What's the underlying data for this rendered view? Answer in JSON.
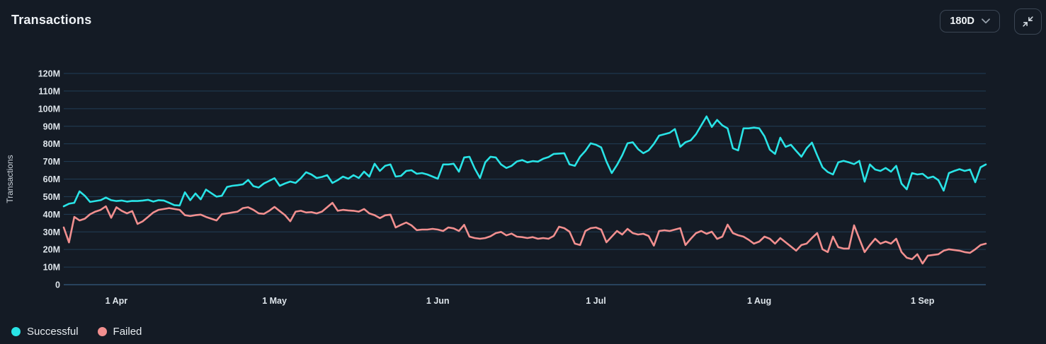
{
  "header": {
    "title": "Transactions",
    "range_selector": {
      "value": "180D",
      "chevron_icon": "chevron-down-icon"
    },
    "collapse_button": {
      "icon": "collapse-arrows-icon"
    }
  },
  "colors": {
    "background": "#141B25",
    "gridline": "#213E56",
    "axis_zero_line": "#2E5170",
    "tick_text": "#DDE4EA",
    "axis_label_text": "#C9D1D9",
    "successful": "#29E3E6",
    "failed": "#F18F8F"
  },
  "chart_data": {
    "type": "line",
    "title": "Transactions",
    "xlabel": "",
    "ylabel": "Transactions",
    "unit": "M",
    "ylim": [
      0,
      120
    ],
    "grid": "horizontal",
    "legend_position": "bottom-left",
    "y_ticks": {
      "values": [
        0,
        10,
        20,
        30,
        40,
        50,
        60,
        70,
        80,
        90,
        100,
        110,
        120
      ],
      "labels": [
        "0",
        "10M",
        "20M",
        "30M",
        "40M",
        "50M",
        "60M",
        "70M",
        "80M",
        "90M",
        "100M",
        "110M",
        "120M"
      ]
    },
    "x_ticks": [
      {
        "index": 10,
        "label": "1 Apr"
      },
      {
        "index": 40,
        "label": "1 May"
      },
      {
        "index": 71,
        "label": "1 Jun"
      },
      {
        "index": 101,
        "label": "1 Jul"
      },
      {
        "index": 132,
        "label": "1 Aug"
      },
      {
        "index": 163,
        "label": "1 Sep"
      }
    ],
    "x_points": 176,
    "series": [
      {
        "name": "Successful",
        "color": "#29E3E6",
        "values_unit": "millions",
        "values": [
          44.5,
          46,
          46.5,
          53,
          50.5,
          47,
          47.5,
          48,
          49.5,
          48,
          47.5,
          47.8,
          47.2,
          47.6,
          47.5,
          47.8,
          48.2,
          47.2,
          48,
          47.8,
          46.5,
          45.2,
          45,
          52.5,
          48,
          51.8,
          48.5,
          54,
          52,
          50,
          50.5,
          55.5,
          56.2,
          56.5,
          57,
          59.5,
          56,
          55.2,
          57.5,
          59,
          60.5,
          56.2,
          57.5,
          58.6,
          57.8,
          60.5,
          63.9,
          62.6,
          60.6,
          61.2,
          62.2,
          57.8,
          59.4,
          61.4,
          60.2,
          62.2,
          60.6,
          64.2,
          61.4,
          68.7,
          64.6,
          67.5,
          68.3,
          61.4,
          61.8,
          64.6,
          65,
          63,
          63.4,
          62.6,
          61.4,
          60.2,
          68.3,
          68.3,
          68.7,
          64.2,
          72.3,
          72.7,
          66,
          60.6,
          69.5,
          72.7,
          72.3,
          68.3,
          66.3,
          67.5,
          70,
          70.8,
          69.5,
          70.2,
          69.9,
          71.5,
          72.5,
          74.3,
          74.5,
          74.7,
          68.3,
          67.5,
          72.7,
          76,
          80.3,
          79.5,
          78,
          70,
          63.4,
          68,
          73.5,
          80.3,
          80.9,
          77,
          74.7,
          76.3,
          80,
          84.7,
          85.5,
          86.3,
          88.4,
          78.3,
          80.9,
          82,
          85.5,
          90.5,
          95.6,
          89.6,
          93.6,
          90.5,
          88.8,
          77.5,
          76.3,
          88.8,
          88.8,
          89.2,
          88.8,
          84.3,
          76.7,
          74.3,
          83.5,
          78.3,
          79.5,
          76,
          72.7,
          77.5,
          80.7,
          73.5,
          66.7,
          64,
          62.6,
          69.5,
          70.3,
          69.5,
          68.5,
          70.3,
          58.5,
          68.3,
          65.4,
          64.6,
          66.3,
          64.2,
          67.5,
          57.4,
          54.2,
          63.4,
          62.6,
          63,
          60.6,
          61.4,
          59.4,
          53.4,
          63.4,
          64.6,
          65.6,
          64.6,
          65.4,
          58.2,
          66.7,
          68.3
        ]
      },
      {
        "name": "Failed",
        "color": "#F18F8F",
        "values_unit": "millions",
        "values": [
          32.5,
          24,
          38.5,
          36.5,
          37.5,
          40,
          41.5,
          42.5,
          44.5,
          38,
          44,
          42,
          40.5,
          41.8,
          34.5,
          36,
          38.5,
          41,
          42.5,
          43,
          43.5,
          43,
          42.5,
          39.5,
          39,
          39.5,
          39.8,
          38.5,
          37.5,
          36.5,
          40,
          40.5,
          41,
          41.5,
          43.5,
          44,
          42.5,
          40.5,
          40.2,
          42,
          44.2,
          41.8,
          39.5,
          36,
          41.5,
          42,
          41,
          41.2,
          40.5,
          41.5,
          44,
          46.5,
          42,
          42.5,
          42.2,
          42,
          41.5,
          43,
          40.5,
          39.5,
          37.8,
          39.4,
          39.8,
          32.5,
          34,
          35.3,
          33.7,
          31,
          31.3,
          31.3,
          31.7,
          31.3,
          30.5,
          32.5,
          32,
          30.5,
          34,
          27.3,
          26.5,
          26.1,
          26.5,
          27.5,
          29.3,
          30,
          28,
          29,
          27.3,
          27,
          26.5,
          27,
          26.1,
          26.5,
          26.1,
          27.7,
          32.9,
          32.1,
          30.1,
          23.3,
          22.5,
          30.5,
          32.1,
          32.5,
          31.3,
          24.1,
          27.3,
          30.5,
          28.5,
          31.7,
          29.3,
          28.5,
          28.9,
          27.7,
          22.2,
          30.5,
          30.9,
          30.5,
          31.3,
          32.1,
          22.5,
          26.1,
          29.3,
          30.5,
          28.9,
          30.1,
          26,
          27.3,
          34.1,
          29.3,
          28.1,
          27.3,
          25.5,
          23.3,
          24.5,
          27.3,
          26.1,
          23.3,
          26.5,
          24.1,
          21.7,
          19.3,
          22.5,
          23.3,
          26.5,
          29.3,
          20.1,
          18.5,
          27.3,
          21.3,
          20.5,
          20.5,
          33.7,
          26.1,
          18.5,
          22.5,
          26.1,
          23.3,
          24.5,
          23.3,
          26.1,
          18.5,
          15.3,
          14.5,
          17.3,
          12,
          16.5,
          16.9,
          17.3,
          19.3,
          20.1,
          19.7,
          19.3,
          18.5,
          18.1,
          20.1,
          22.5,
          23.3
        ]
      }
    ]
  }
}
